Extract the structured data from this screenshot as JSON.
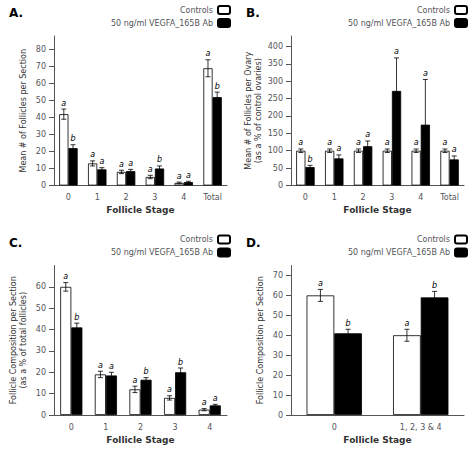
{
  "chart_data": [
    {
      "type": "bar",
      "title": "A.",
      "categories": [
        "0",
        "1",
        "2",
        "3",
        "4",
        "Total"
      ],
      "series": [
        {
          "name": "Controls",
          "color": "white",
          "values": [
            42,
            13,
            8,
            5,
            1.5,
            69
          ],
          "errors": [
            3,
            1.5,
            1,
            1,
            0.5,
            5
          ],
          "annotations": [
            "a",
            "a",
            "a",
            "a",
            "a",
            "a"
          ]
        },
        {
          "name": "50 ng/ml VEGFA_165B Ab",
          "color": "black",
          "values": [
            22,
            9.5,
            8.5,
            10,
            2,
            52
          ],
          "errors": [
            2,
            1,
            1,
            1.5,
            0.5,
            3
          ],
          "annotations": [
            "b",
            "a",
            "a",
            "b",
            "a",
            "b"
          ]
        }
      ],
      "xlabel": "Follicle Stage",
      "ylabel": "Mean # of Follicles per Section",
      "ylim": [
        0,
        88
      ],
      "yticks": [
        0,
        10,
        20,
        30,
        40,
        50,
        60,
        70,
        80
      ],
      "legend": "upper right",
      "grid": false
    },
    {
      "type": "bar",
      "title": "B.",
      "categories": [
        "0",
        "1",
        "2",
        "3",
        "4",
        "Total"
      ],
      "series": [
        {
          "name": "Controls",
          "color": "white",
          "values": [
            100,
            100,
            100,
            100,
            100,
            100
          ],
          "errors": [
            5,
            5,
            5,
            5,
            5,
            5
          ],
          "annotations": [
            "a",
            "a",
            "a",
            "a",
            "a",
            "a"
          ]
        },
        {
          "name": "50 ng/ml VEGFA_165B Ab",
          "color": "black",
          "values": [
            53,
            78,
            113,
            272,
            175,
            75
          ],
          "errors": [
            5,
            10,
            15,
            95,
            130,
            10
          ],
          "annotations": [
            "b",
            "a",
            "a",
            "a",
            "a",
            "a"
          ]
        }
      ],
      "xlabel": "Follicle Stage",
      "ylabel": "Mean # of Follicles per Ovary\n(as a % of control ovaries)",
      "ylim": [
        0,
        430
      ],
      "yticks": [
        0,
        50,
        100,
        150,
        200,
        250,
        300,
        350,
        400
      ],
      "legend": "upper right",
      "grid": false
    },
    {
      "type": "bar",
      "title": "C.",
      "categories": [
        "0",
        "1",
        "2",
        "3",
        "4"
      ],
      "series": [
        {
          "name": "Controls",
          "color": "white",
          "values": [
            60,
            19,
            12,
            8,
            2.5
          ],
          "errors": [
            2,
            1.5,
            1.5,
            1,
            0.5
          ],
          "annotations": [
            "a",
            "a",
            "a",
            "a",
            "a"
          ]
        },
        {
          "name": "50 ng/ml VEGFA_165B Ab",
          "color": "black",
          "values": [
            41,
            18.5,
            16.5,
            20,
            4.5
          ],
          "errors": [
            2,
            1.5,
            1,
            2,
            0.5
          ],
          "annotations": [
            "b",
            "a",
            "b",
            "b",
            "a"
          ]
        }
      ],
      "xlabel": "Follicle Stage",
      "ylabel": "Follicle Composition per Section\n(as a % of total follicles)",
      "ylim": [
        0,
        70
      ],
      "yticks": [
        0,
        10,
        20,
        30,
        40,
        50,
        60
      ],
      "legend": "upper right",
      "grid": false
    },
    {
      "type": "bar",
      "title": "D.",
      "categories": [
        "0",
        "1, 2, 3 & 4"
      ],
      "series": [
        {
          "name": "Controls",
          "color": "white",
          "values": [
            60,
            40
          ],
          "errors": [
            3,
            3
          ],
          "annotations": [
            "a",
            "a"
          ]
        },
        {
          "name": "50 ng/ml VEGFA_165B Ab",
          "color": "black",
          "values": [
            41,
            59
          ],
          "errors": [
            2,
            3
          ],
          "annotations": [
            "b",
            "b"
          ]
        }
      ],
      "xlabel": "Follicle Stage",
      "ylabel": "Follicle Composition per Section",
      "ylim": [
        0,
        75
      ],
      "yticks": [
        0,
        10,
        20,
        30,
        40,
        50,
        60,
        70
      ],
      "legend": "upper right",
      "grid": false
    }
  ]
}
